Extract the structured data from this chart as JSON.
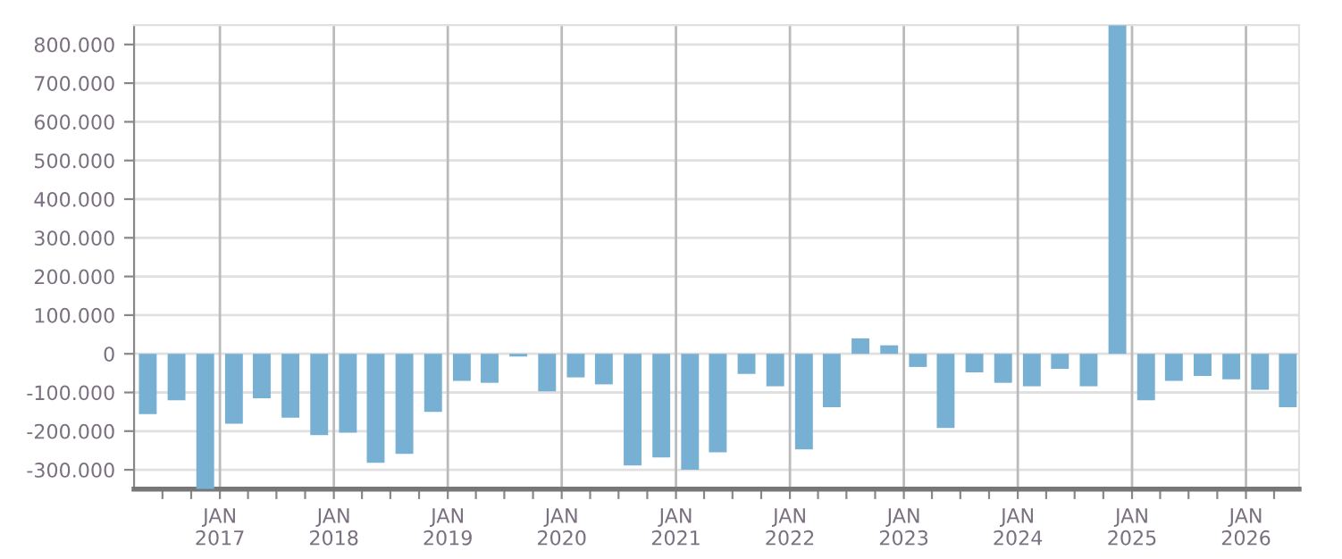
{
  "chart_data": {
    "type": "bar",
    "x": [
      "2016-05-15",
      "2016-08-15",
      "2016-11-15",
      "2017-02-15",
      "2017-05-15",
      "2017-08-15",
      "2017-11-15",
      "2018-02-15",
      "2018-05-15",
      "2018-08-15",
      "2018-11-15",
      "2019-02-15",
      "2019-05-15",
      "2019-08-15",
      "2019-11-15",
      "2020-02-15",
      "2020-05-15",
      "2020-08-15",
      "2020-11-15",
      "2021-02-15",
      "2021-05-15",
      "2021-08-15",
      "2021-11-15",
      "2022-02-15",
      "2022-05-15",
      "2022-08-15",
      "2022-11-15",
      "2023-02-15",
      "2023-05-15",
      "2023-08-15",
      "2023-11-15",
      "2024-02-15",
      "2024-05-15",
      "2024-08-15",
      "2024-11-15",
      "2025-02-15",
      "2025-05-15",
      "2025-08-15",
      "2025-11-15",
      "2026-02-15",
      "2026-05-15"
    ],
    "values": [
      -156000,
      -120000,
      -350000,
      -181000,
      -115000,
      -165000,
      -210000,
      -204000,
      -282000,
      -259000,
      -150000,
      -70000,
      -75000,
      -7000,
      -97000,
      -61000,
      -79000,
      -289000,
      -268000,
      -300000,
      -255000,
      -52000,
      -84000,
      -247000,
      -138000,
      40000,
      22000,
      -34000,
      -192000,
      -48000,
      -75000,
      -84000,
      -39000,
      -84000,
      850000,
      -120000,
      -70000,
      -57000,
      -66000,
      -93000,
      -138000
    ],
    "color": "#77b0d3",
    "ylim": [
      -350000,
      850000
    ],
    "yticks": [
      {
        "value": -300000,
        "label": "-300.000"
      },
      {
        "value": -200000,
        "label": "-200.000"
      },
      {
        "value": -100000,
        "label": "-100.000"
      },
      0,
      {
        "value": 100000,
        "label": "100.000"
      },
      {
        "value": 200000,
        "label": "200.000"
      },
      {
        "value": 300000,
        "label": "300.000"
      },
      {
        "value": 400000,
        "label": "400.000"
      },
      {
        "value": 500000,
        "label": "500.000"
      },
      {
        "value": 600000,
        "label": "600.000"
      },
      {
        "value": 700000,
        "label": "700.000"
      },
      {
        "value": 800000,
        "label": "800.000"
      }
    ],
    "xlim": [
      "2016-04-01",
      "2026-06-20"
    ],
    "xticks": [
      {
        "value": "2016-07-01",
        "label": null
      },
      {
        "value": "2016-10-01",
        "label": null
      },
      {
        "value": "2017-01-01",
        "label": "JAN\n2017"
      },
      {
        "value": "2017-04-01",
        "label": null
      },
      {
        "value": "2017-07-01",
        "label": null
      },
      {
        "value": "2017-10-01",
        "label": null
      },
      {
        "value": "2018-01-01",
        "label": "JAN\n2018"
      },
      {
        "value": "2018-04-01",
        "label": null
      },
      {
        "value": "2018-07-01",
        "label": null
      },
      {
        "value": "2018-10-01",
        "label": null
      },
      {
        "value": "2019-01-01",
        "label": "JAN\n2019"
      },
      {
        "value": "2019-04-01",
        "label": null
      },
      {
        "value": "2019-07-01",
        "label": null
      },
      {
        "value": "2019-10-01",
        "label": null
      },
      {
        "value": "2020-01-01",
        "label": "JAN\n2020"
      },
      {
        "value": "2020-04-01",
        "label": null
      },
      {
        "value": "2020-07-01",
        "label": null
      },
      {
        "value": "2020-10-01",
        "label": null
      },
      {
        "value": "2021-01-01",
        "label": "JAN\n2021"
      },
      {
        "value": "2021-04-01",
        "label": null
      },
      {
        "value": "2021-07-01",
        "label": null
      },
      {
        "value": "2021-10-01",
        "label": null
      },
      {
        "value": "2022-01-01",
        "label": "JAN\n2022"
      },
      {
        "value": "2022-04-01",
        "label": null
      },
      {
        "value": "2022-07-01",
        "label": null
      },
      {
        "value": "2022-10-01",
        "label": null
      },
      {
        "value": "2023-01-01",
        "label": "JAN\n2023"
      },
      {
        "value": "2023-04-01",
        "label": null
      },
      {
        "value": "2023-07-01",
        "label": null
      },
      {
        "value": "2023-10-01",
        "label": null
      },
      {
        "value": "2024-01-01",
        "label": "JAN\n2024"
      },
      {
        "value": "2024-04-01",
        "label": null
      },
      {
        "value": "2024-07-01",
        "label": null
      },
      {
        "value": "2024-10-01",
        "label": null
      },
      {
        "value": "2025-01-01",
        "label": "JAN\n2025"
      },
      {
        "value": "2025-04-01",
        "label": null
      },
      {
        "value": "2025-07-01",
        "label": null
      },
      {
        "value": "2025-10-01",
        "label": null
      },
      {
        "value": "2026-01-01",
        "label": "JAN\n2026"
      },
      {
        "value": "2026-04-01",
        "label": null
      }
    ],
    "grid": true
  }
}
